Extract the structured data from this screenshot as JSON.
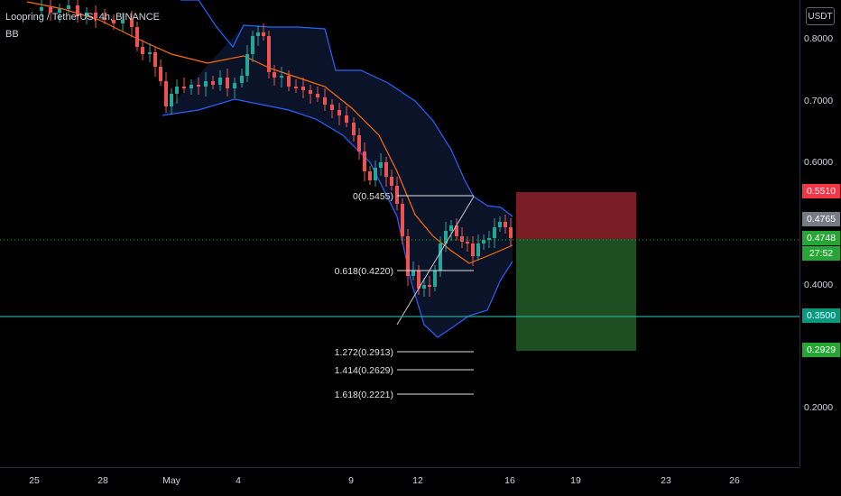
{
  "header": {
    "title": "Loopring / TetherUS, 4h, BINANCE",
    "indicator": "BB"
  },
  "price_scale": {
    "unit": "USDT",
    "ticks": [
      "0.8000",
      "0.7000",
      "0.6000",
      "0.4000",
      "0.2000"
    ],
    "badges": {
      "stop": "0.5510",
      "last_close": "0.4765",
      "current": "0.4748",
      "countdown": "27:52",
      "horizontal_line": "0.3500",
      "target": "0.2929"
    }
  },
  "time_scale": {
    "labels": [
      "25",
      "28",
      "May",
      "4",
      "9",
      "12",
      "16",
      "19",
      "23",
      "26"
    ]
  },
  "fibonacci": {
    "levels": [
      "0(0.5455)",
      "0.618(0.4220)",
      "1.272(0.2913)",
      "1.414(0.2629)",
      "1.618(0.2221)"
    ]
  },
  "colors": {
    "background": "#000000",
    "bull_candle": "#26a69a",
    "bear_candle": "#ef5350",
    "bb_band": "#2962ff",
    "bb_basis": "#ff6d00",
    "stop_zone": "#7a1d24",
    "target_zone": "#1d4f22",
    "horizontal_line": "#26a69a"
  }
}
